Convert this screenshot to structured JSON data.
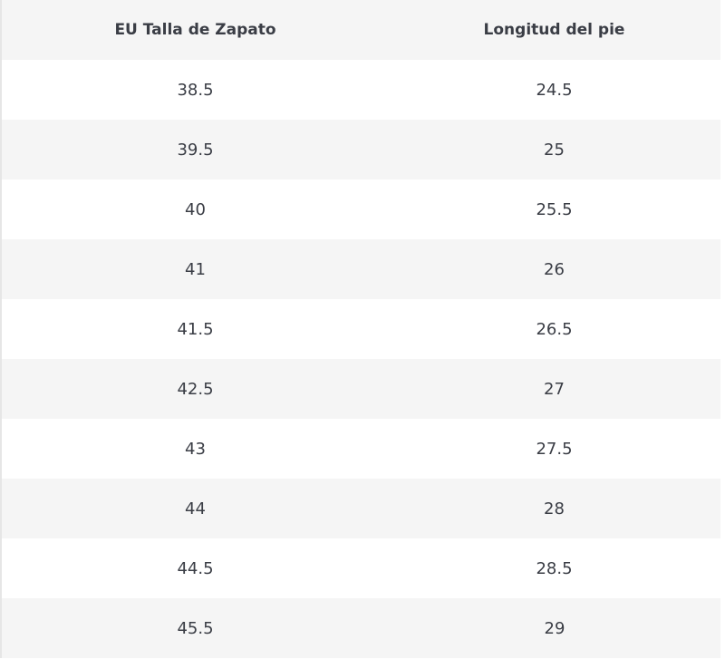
{
  "table": {
    "header": [
      "EU Talla de Zapato",
      "Longitud del pie"
    ],
    "rows": [
      [
        "38.5",
        "24.5"
      ],
      [
        "39.5",
        "25"
      ],
      [
        "40",
        "25.5"
      ],
      [
        "41",
        "26"
      ],
      [
        "41.5",
        "26.5"
      ],
      [
        "42.5",
        "27"
      ],
      [
        "43",
        "27.5"
      ],
      [
        "44",
        "28"
      ],
      [
        "44.5",
        "28.5"
      ],
      [
        "45.5",
        "29"
      ]
    ]
  }
}
